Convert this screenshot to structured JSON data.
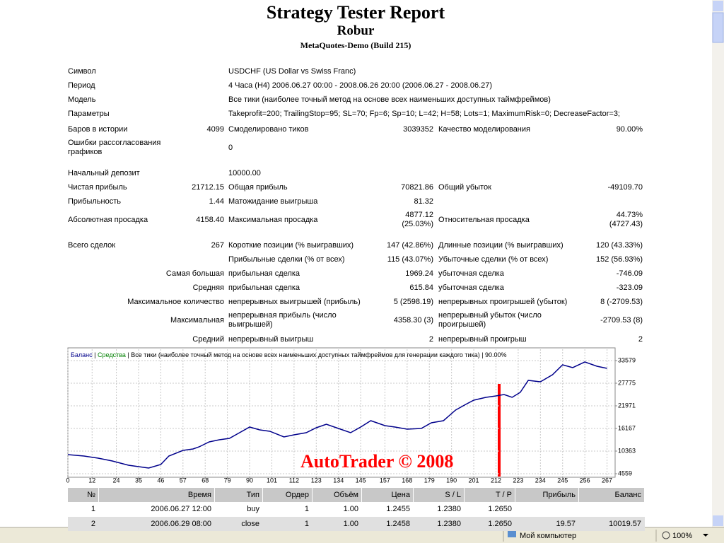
{
  "header": {
    "title": "Strategy Tester Report",
    "expert": "Robur",
    "server": "MetaQuotes-Demo (Build 215)"
  },
  "stats": {
    "rows": [
      [
        "Символ",
        "USDCHF (US Dollar vs Swiss Franc)"
      ],
      [
        "Период",
        "4 Часа (H4) 2006.06.27 00:00 - 2008.06.26 20:00 (2006.06.27 - 2008.06.27)"
      ],
      [
        "Модель",
        "Все тики (наиболее точный метод на основе всех наименьших доступных таймфреймов)"
      ],
      [
        "Параметры",
        "Takeprofit=200; TrailingStop=95; SL=70; Fp=6; Sp=10; L=42; H=58; Lots=1; MaximumRisk=0; DecreaseFactor=3;"
      ],
      [
        "Баров в истории",
        "4099",
        "Смоделировано тиков",
        "3039352",
        "Качество моделирования",
        "90.00%"
      ],
      [
        "Ошибки рассогласования\nграфиков",
        "0"
      ],
      [
        "Начальный депозит",
        "10000.00"
      ],
      [
        "Чистая прибыль",
        "21712.15",
        "Общая прибыль",
        "70821.86",
        "Общий убыток",
        "-49109.70"
      ],
      [
        "Прибыльность",
        "1.44",
        "Матожидание выигрыша",
        "81.32"
      ],
      [
        "Абсолютная просадка",
        "4158.40",
        "Максимальная просадка",
        "4877.12\n(25.03%)",
        "Относительная просадка",
        "44.73%\n(4727.43)"
      ],
      [
        "Всего сделок",
        "267",
        "Короткие позиции (% выигравших)",
        "147 (42.86%)",
        "Длинные позиции (% выигравших)",
        "120 (43.33%)"
      ],
      [
        null,
        null,
        "Прибыльные сделки (% от всех)",
        "115 (43.07%)",
        "Убыточные сделки (% от всех)",
        "152 (56.93%)"
      ],
      [
        null,
        "Самая большая",
        "прибыльная сделка",
        "1969.24",
        "убыточная сделка",
        "-746.09"
      ],
      [
        null,
        "Средняя",
        "прибыльная сделка",
        "615.84",
        "убыточная сделка",
        "-323.09"
      ],
      [
        null,
        "Максимальное количество",
        "непрерывных выигрышей (прибыль)",
        "5 (2598.19)",
        "непрерывных проигрышей (убыток)",
        "8 (-2709.53)"
      ],
      [
        null,
        "Максимальная",
        "непрерывная прибыль (число\nвыигрышей)",
        "4358.30 (3)",
        "непрерывный убыток (число\nпроигрышей)",
        "-2709.53 (8)"
      ],
      [
        null,
        "Средний",
        "непрерывный выигрыш",
        "2",
        "непрерывный проигрыш",
        "2"
      ]
    ]
  },
  "balance_chart": {
    "type": "line",
    "separator": "|",
    "note": "| Все тики (наиболее точный метод на основе всех наименьших доступных таймфреймов для генерации каждого тика) | 90.00%",
    "x": [
      0,
      8,
      15,
      22,
      30,
      35,
      40,
      46,
      50,
      57,
      62,
      65,
      70,
      75,
      80,
      85,
      90,
      95,
      100,
      107,
      112,
      118,
      123,
      128,
      134,
      140,
      145,
      150,
      157,
      162,
      168,
      175,
      180,
      186,
      192,
      197,
      201,
      207,
      212,
      216,
      220,
      224,
      228,
      234,
      240,
      245,
      250,
      256,
      262,
      267
    ],
    "series": [
      {
        "name": "Баланс",
        "color": "#00008b",
        "values": [
          9457,
          9094,
          8550,
          7824,
          6736,
          6373,
          6010,
          6917,
          9094,
          10545,
          10908,
          11452,
          12722,
          13266,
          13629,
          15080,
          16532,
          15806,
          15443,
          13992,
          14536,
          15080,
          16350,
          17257,
          16169,
          15080,
          16532,
          18164,
          16895,
          16532,
          15987,
          16169,
          17620,
          18164,
          20885,
          22336,
          23424,
          24150,
          24513,
          24876,
          24150,
          25420,
          28504,
          28141,
          29955,
          32495,
          31769,
          33220,
          32132,
          31588
        ]
      },
      {
        "name": "Средства",
        "color": "#008000"
      }
    ],
    "xlim": [
      0,
      271
    ],
    "ylim": [
      3833,
      36481
    ],
    "xticks": [
      0,
      12,
      24,
      35,
      46,
      57,
      68,
      79,
      90,
      101,
      112,
      123,
      134,
      145,
      157,
      168,
      179,
      190,
      201,
      212,
      223,
      234,
      245,
      256,
      267
    ],
    "yticks": [
      4559,
      10363,
      16167,
      21971,
      27775,
      33579
    ],
    "grid": true
  },
  "watermark": "AutoTrader © 2008",
  "trades": {
    "columns": [
      "№",
      "Время",
      "Тип",
      "Ордер",
      "Объём",
      "Цена",
      "S / L",
      "T / P",
      "Прибыль",
      "Баланс"
    ],
    "rows": [
      [
        "1",
        "2006.06.27 12:00",
        "buy",
        "1",
        "1.00",
        "1.2455",
        "1.2380",
        "1.2650",
        null,
        null
      ],
      [
        "2",
        "2006.06.29 08:00",
        "close",
        "1",
        "1.00",
        "1.2458",
        "1.2380",
        "1.2650",
        "19.57",
        "10019.57"
      ]
    ]
  },
  "statusbar": {
    "zone": "Мой компьютер",
    "zoom": "100%"
  }
}
